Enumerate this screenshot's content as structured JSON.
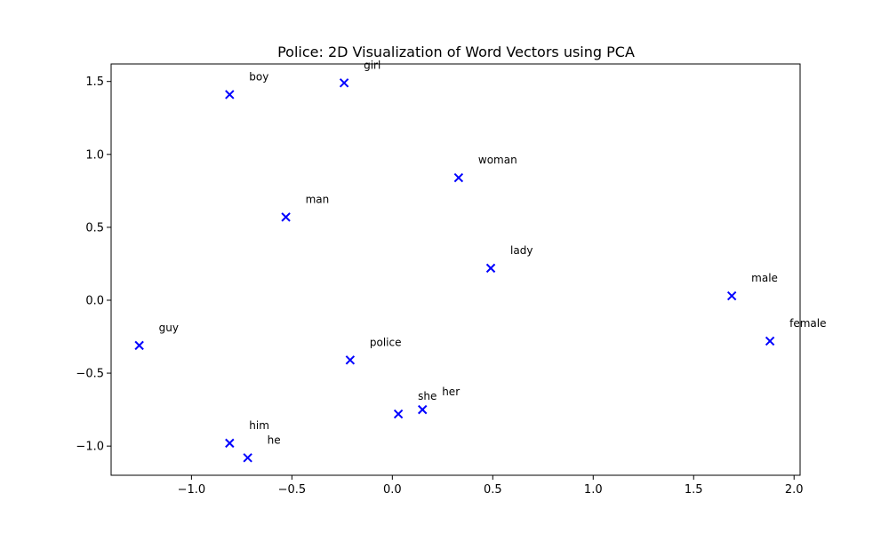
{
  "chart_data": {
    "type": "scatter",
    "title": "Police: 2D Visualization of Word Vectors using PCA",
    "xlabel": "",
    "ylabel": "",
    "xlim": [
      -1.4,
      2.03
    ],
    "ylim": [
      -1.2,
      1.62
    ],
    "xticks": [
      -1.0,
      -0.5,
      0.0,
      0.5,
      1.0,
      1.5,
      2.0
    ],
    "xtick_labels": [
      "−1.0",
      "−0.5",
      "0.0",
      "0.5",
      "1.0",
      "1.5",
      "2.0"
    ],
    "yticks": [
      -1.0,
      -0.5,
      0.0,
      0.5,
      1.0,
      1.5
    ],
    "ytick_labels": [
      "−1.0",
      "−0.5",
      "0.0",
      "0.5",
      "1.0",
      "1.5"
    ],
    "grid": false,
    "marker": "x",
    "marker_color": "#0000ff",
    "points": [
      {
        "label": "boy",
        "x": -0.81,
        "y": 1.41
      },
      {
        "label": "girl",
        "x": -0.24,
        "y": 1.49
      },
      {
        "label": "woman",
        "x": 0.33,
        "y": 0.84
      },
      {
        "label": "man",
        "x": -0.53,
        "y": 0.57
      },
      {
        "label": "lady",
        "x": 0.49,
        "y": 0.22
      },
      {
        "label": "male",
        "x": 1.69,
        "y": 0.03
      },
      {
        "label": "female",
        "x": 1.88,
        "y": -0.28
      },
      {
        "label": "guy",
        "x": -1.26,
        "y": -0.31
      },
      {
        "label": "police",
        "x": -0.21,
        "y": -0.41
      },
      {
        "label": "she",
        "x": 0.03,
        "y": -0.78
      },
      {
        "label": "her",
        "x": 0.15,
        "y": -0.75
      },
      {
        "label": "him",
        "x": -0.81,
        "y": -0.98
      },
      {
        "label": "he",
        "x": -0.72,
        "y": -1.08
      }
    ]
  }
}
